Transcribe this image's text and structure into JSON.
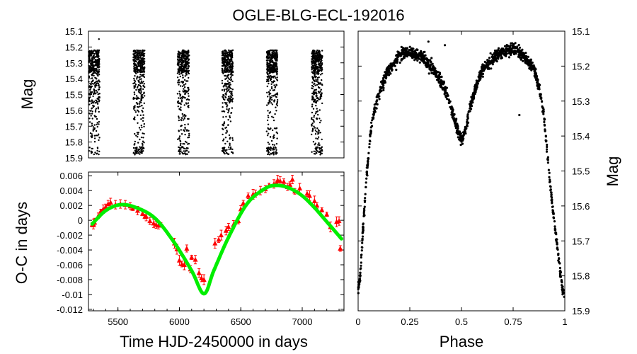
{
  "title": "OGLE-BLG-ECL-192016",
  "colors": {
    "points": "#000000",
    "oc_points": "#ff0000",
    "fit": "#00ee00"
  },
  "chart_data": [
    {
      "id": "lightcurve",
      "type": "scatter",
      "ylabel": "Mag",
      "xlim": [
        5260,
        7340
      ],
      "ylim": [
        15.1,
        15.9
      ],
      "y_inverted": true,
      "yticks": [
        "15.1",
        "15.2",
        "15.3",
        "15.4",
        "15.5",
        "15.6",
        "15.7",
        "15.8",
        "15.9"
      ],
      "season_ranges": [
        [
          5262,
          5351
        ],
        [
          5625,
          5717
        ],
        [
          5985,
          6080
        ],
        [
          6348,
          6436
        ],
        [
          6711,
          6799
        ],
        [
          7076,
          7164
        ]
      ],
      "bright_level": 15.22,
      "faint_level": 15.87
    },
    {
      "id": "oc",
      "type": "scatter",
      "xlabel": "Time HJD-2450000 in days",
      "ylabel": "O-C in days",
      "xlim": [
        5260,
        7340
      ],
      "ylim": [
        -0.0122,
        0.0065
      ],
      "xticks": [
        "5500",
        "6000",
        "6500",
        "7000"
      ],
      "yticks": [
        "0.006",
        "0.004",
        "0.002",
        "0",
        "-0.002",
        "-0.004",
        "-0.006",
        "-0.008",
        "-0.01",
        "-0.012"
      ],
      "points_x": [
        5290,
        5300,
        5310,
        5340,
        5360,
        5380,
        5400,
        5420,
        5440,
        5480,
        5520,
        5560,
        5600,
        5620,
        5660,
        5700,
        5720,
        5730,
        5760,
        5790,
        5810,
        5830,
        5850,
        5960,
        5980,
        6000,
        6020,
        6040,
        6060,
        6090,
        6100,
        6130,
        6160,
        6180,
        6200,
        6290,
        6320,
        6340,
        6380,
        6400,
        6440,
        6480,
        6500,
        6520,
        6560,
        6600,
        6620,
        6660,
        6700,
        6730,
        6770,
        6790,
        6800,
        6820,
        6850,
        6880,
        6900,
        6920,
        6940,
        6980,
        7040,
        7060,
        7100,
        7120,
        7160,
        7200,
        7230,
        7280,
        7300,
        7310
      ],
      "points_y": [
        -0.0006,
        -0.0005,
        -0.0003,
        0.0006,
        0.0012,
        0.0015,
        0.0018,
        0.0022,
        0.0024,
        0.0021,
        0.0022,
        0.0021,
        0.0019,
        0.0016,
        0.0013,
        0.0009,
        0.0005,
        0.0005,
        -0.0001,
        -0.0004,
        -0.0006,
        -0.0007,
        -0.0006,
        -0.0031,
        -0.0039,
        -0.0054,
        -0.0059,
        -0.006,
        -0.0038,
        -0.0066,
        -0.005,
        -0.0053,
        -0.0071,
        -0.0078,
        -0.008,
        -0.0031,
        -0.0026,
        -0.002,
        -0.0014,
        -0.0009,
        -0.0006,
        -0.0001,
        0.0015,
        0.0023,
        0.0033,
        0.0035,
        0.0036,
        0.004,
        0.0042,
        0.0047,
        0.0049,
        0.005,
        0.0054,
        0.0053,
        0.0052,
        0.0045,
        0.0048,
        0.0055,
        0.0039,
        0.0043,
        0.0036,
        0.0033,
        0.0026,
        0.002,
        0.0014,
        0.0008,
        -0.0009,
        -0.0002,
        -0.0001,
        -0.0038
      ],
      "fit_nodes_x": [
        5290,
        5400,
        5520,
        5650,
        5800,
        5950,
        6100,
        6200,
        6280,
        6400,
        6550,
        6700,
        6800,
        6900,
        7000,
        7100,
        7200,
        7320
      ],
      "fit_nodes_y": [
        -0.0005,
        0.0013,
        0.0021,
        0.0017,
        0.0003,
        -0.0028,
        -0.0068,
        -0.0099,
        -0.0068,
        -0.0023,
        0.0022,
        0.0043,
        0.0047,
        0.0043,
        0.0033,
        0.0017,
        -0.0002,
        -0.0025
      ]
    },
    {
      "id": "phased",
      "type": "scatter",
      "xlabel": "Phase",
      "ylabel": "Mag",
      "xlim": [
        0,
        1
      ],
      "ylim": [
        15.1,
        15.9
      ],
      "y_inverted": true,
      "xticks": [
        "0",
        "0.25",
        "0.5",
        "0.75",
        "1"
      ],
      "yticks": [
        "15.1",
        "15.2",
        "15.3",
        "15.4",
        "15.5",
        "15.6",
        "15.7",
        "15.8",
        "15.9"
      ],
      "curve_phase": [
        0,
        0.01,
        0.02,
        0.04,
        0.06,
        0.08,
        0.1,
        0.13,
        0.16,
        0.2,
        0.25,
        0.3,
        0.35,
        0.4,
        0.43,
        0.46,
        0.48,
        0.5,
        0.52,
        0.54,
        0.57,
        0.6,
        0.65,
        0.7,
        0.75,
        0.8,
        0.85,
        0.88,
        0.9,
        0.92,
        0.94,
        0.96,
        0.98,
        0.99,
        1
      ],
      "curve_mag": [
        15.84,
        15.8,
        15.7,
        15.52,
        15.39,
        15.32,
        15.28,
        15.23,
        15.2,
        15.17,
        15.16,
        15.17,
        15.2,
        15.24,
        15.28,
        15.34,
        15.38,
        15.41,
        15.38,
        15.32,
        15.26,
        15.21,
        15.18,
        15.16,
        15.15,
        15.17,
        15.21,
        15.27,
        15.35,
        15.48,
        15.6,
        15.7,
        15.8,
        15.84,
        15.86
      ]
    }
  ]
}
